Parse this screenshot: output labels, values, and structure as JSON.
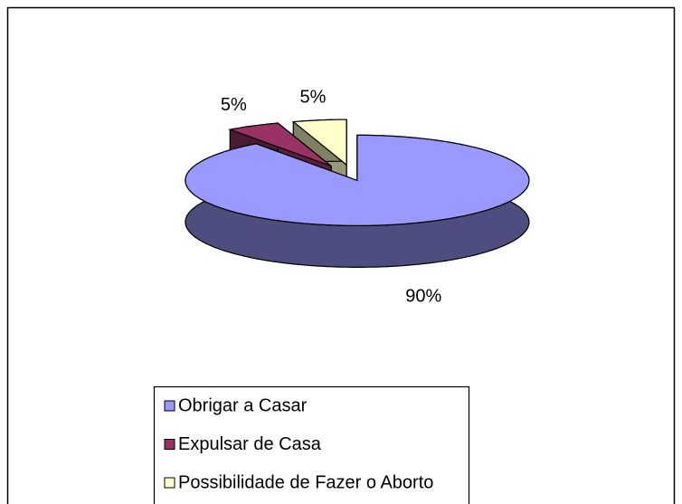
{
  "chart_data": {
    "type": "pie3d",
    "categories": [
      "Obrigar a Casar",
      "Expulsar de Casa",
      "Possibilidade de Fazer o Aborto"
    ],
    "values": [
      90,
      5,
      5
    ],
    "value_labels": [
      "90%",
      "5%",
      "5%"
    ],
    "colors": [
      "#9999ff",
      "#993366",
      "#ffffcc"
    ],
    "legend": "bottom"
  }
}
